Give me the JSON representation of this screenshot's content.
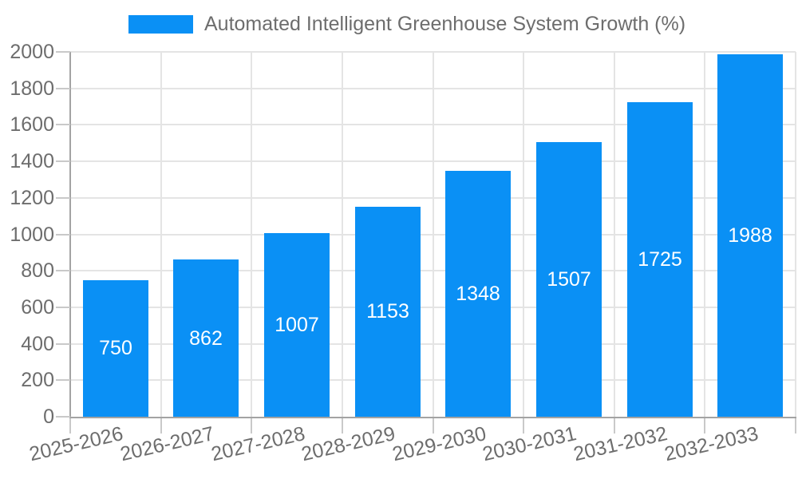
{
  "legend": {
    "label": "Automated Intelligent Greenhouse System Growth (%)"
  },
  "colors": {
    "bar": "#0a90f5",
    "grid": "#e4e4e4",
    "axis": "#a3a3a3",
    "tick": "#c9c9c9",
    "text": "#6d6d6d",
    "value_text": "#ffffff",
    "background": "#ffffff"
  },
  "chart_data": {
    "type": "bar",
    "title": "",
    "legend_entries": [
      "Automated Intelligent Greenhouse System Growth (%)"
    ],
    "legend_position": "top-center",
    "categories": [
      "2025-2026",
      "2026-2027",
      "2027-2028",
      "2028-2029",
      "2029-2030",
      "2030-2031",
      "2031-2032",
      "2032-2033"
    ],
    "values": [
      750,
      862,
      1007,
      1153,
      1348,
      1507,
      1725,
      1988
    ],
    "value_labels": [
      "750",
      "862",
      "1007",
      "1153",
      "1348",
      "1507",
      "1725",
      "1988"
    ],
    "value_label_position": "inside-center",
    "xlabel": "",
    "ylabel": "",
    "ylim": [
      0,
      2000
    ],
    "ytick_step": 200,
    "ytick_labels": [
      "0",
      "200",
      "400",
      "600",
      "800",
      "1000",
      "1200",
      "1400",
      "1600",
      "1800",
      "2000"
    ],
    "grid": true,
    "x_label_rotation_deg": -13
  }
}
